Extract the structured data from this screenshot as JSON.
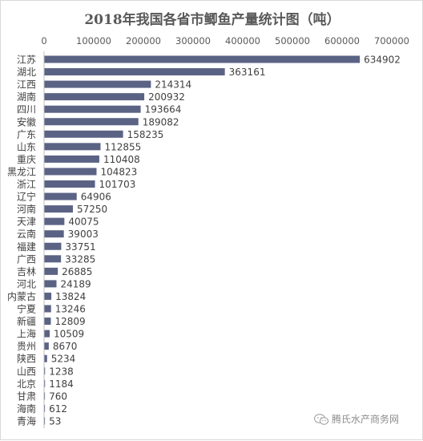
{
  "chart_data": {
    "type": "bar",
    "orientation": "horizontal",
    "title": "2018年我国各省市鲫鱼产量统计图（吨）",
    "xlabel": "",
    "ylabel": "",
    "xlim": [
      0,
      700000
    ],
    "x_ticks": [
      "0",
      "100000",
      "200000",
      "300000",
      "400000",
      "500000",
      "600000",
      "700000"
    ],
    "x_axis_position": "top",
    "grid": false,
    "legend": "none",
    "categories": [
      "江苏",
      "湖北",
      "江西",
      "湖南",
      "四川",
      "安徽",
      "广东",
      "山东",
      "重庆",
      "黑龙江",
      "浙江",
      "辽宁",
      "河南",
      "天津",
      "云南",
      "福建",
      "广西",
      "吉林",
      "河北",
      "内蒙古",
      "宁夏",
      "新疆",
      "上海",
      "贵州",
      "陕西",
      "山西",
      "北京",
      "甘肃",
      "海南",
      "青海"
    ],
    "values": [
      634902,
      363161,
      214314,
      200932,
      193664,
      189082,
      158235,
      112855,
      110408,
      104823,
      101703,
      64906,
      57250,
      40075,
      39003,
      33751,
      33285,
      26885,
      24189,
      13824,
      13246,
      12809,
      10509,
      8670,
      5234,
      1238,
      1184,
      760,
      612,
      53
    ],
    "data_labels": [
      "634902",
      "363161",
      "214314",
      "200932",
      "193664",
      "189082",
      "158235",
      "112855",
      "110408",
      "104823",
      "101703",
      "64906",
      "57250",
      "40075",
      "39003",
      "33751",
      "33285",
      "26885",
      "24189",
      "13824",
      "13246",
      "12809",
      "10509",
      "8670",
      "5234",
      "1238",
      "1184",
      "760",
      "612",
      "53"
    ],
    "bar_color": "#5b6385"
  },
  "watermark": {
    "text": "腾氏水产商务网",
    "icon": "wechat-icon"
  }
}
